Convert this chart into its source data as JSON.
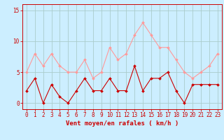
{
  "x": [
    0,
    1,
    2,
    3,
    4,
    5,
    6,
    7,
    8,
    9,
    10,
    11,
    12,
    13,
    14,
    15,
    16,
    17,
    18,
    19,
    20,
    21,
    22,
    23
  ],
  "vent_moyen": [
    2,
    4,
    0,
    3,
    1,
    0,
    2,
    4,
    2,
    2,
    4,
    2,
    2,
    6,
    2,
    4,
    4,
    5,
    2,
    0,
    3,
    3,
    3,
    3
  ],
  "rafales": [
    5,
    8,
    6,
    8,
    6,
    5,
    5,
    7,
    4,
    5,
    9,
    7,
    8,
    11,
    13,
    11,
    9,
    9,
    7,
    5,
    4,
    5,
    6,
    8
  ],
  "vent_color": "#cc0000",
  "rafales_color": "#ff9999",
  "bg_color": "#cceeff",
  "grid_color": "#aacccc",
  "xlabel": "Vent moyen/en rafales ( km/h )",
  "ylim": [
    -1,
    16
  ],
  "yticks": [
    0,
    5,
    10,
    15
  ],
  "xticks": [
    0,
    1,
    2,
    3,
    4,
    5,
    6,
    7,
    8,
    9,
    10,
    11,
    12,
    13,
    14,
    15,
    16,
    17,
    18,
    19,
    20,
    21,
    22,
    23
  ],
  "tick_fontsize": 5.5,
  "xlabel_fontsize": 6.5,
  "markersize": 2.0,
  "linewidth": 0.8
}
